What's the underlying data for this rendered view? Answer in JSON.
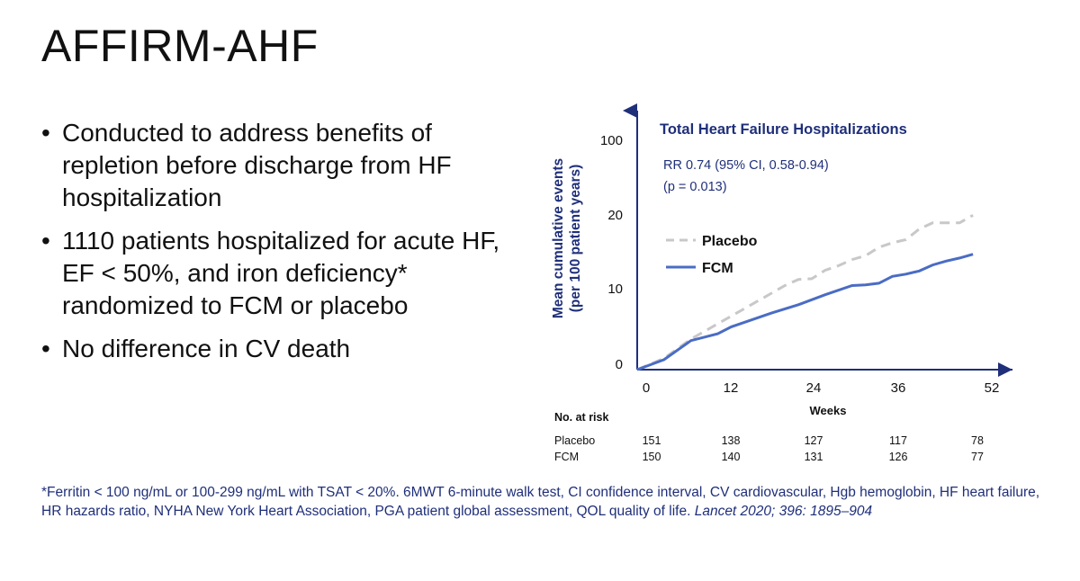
{
  "slide": {
    "title": "AFFIRM-AHF",
    "bullets": [
      "Conducted to address benefits of repletion before discharge from HF hospitalization",
      "1110 patients hospitalized for acute HF, EF < 50%, and  iron deficiency* randomized to FCM or placebo",
      "No difference in CV death"
    ],
    "footnote": "*Ferritin < 100 ng/mL or 100-299 ng/mL with TSAT < 20%. 6MWT 6-minute walk test, CI confidence interval, CV cardiovascular,  Hgb hemoglobin, HF heart failure, HR hazards ratio, NYHA New York Heart Association, PGA patient global assessment, QOL quality of life.",
    "citation": "Lancet 2020; 396: 1895–904"
  },
  "chart_data": {
    "type": "line",
    "title": "Total Heart Failure Hospitalizations",
    "annotations": [
      "RR 0.74 (95% CI, 0.58-0.94)",
      "(p = 0.013)"
    ],
    "xlabel": "Weeks",
    "ylabel": [
      "Mean cumulative events",
      "(per 100 patient years)"
    ],
    "xticks": [
      0,
      12,
      24,
      36,
      52
    ],
    "yticks": [
      "0",
      "10",
      "20",
      "100"
    ],
    "xlim": [
      0,
      52
    ],
    "y_axis_break": "between 20 and 100",
    "legend_position": "upper-left inside plot",
    "series": [
      {
        "name": "Placebo",
        "style": "dashed",
        "color": "#c8c8c8",
        "x": [
          0,
          4,
          8,
          12,
          16,
          20,
          22,
          24,
          26,
          28,
          30,
          32,
          34,
          36,
          38,
          40,
          42,
          44,
          46,
          48,
          50
        ],
        "y": [
          0,
          1.5,
          4.0,
          6.0,
          8.0,
          10.0,
          11.0,
          11.8,
          11.9,
          13.0,
          13.6,
          14.4,
          14.9,
          16.0,
          16.6,
          17.0,
          18.4,
          19.2,
          19.2,
          19.2,
          20.2
        ]
      },
      {
        "name": "FCM",
        "style": "solid",
        "color": "#4a6cc4",
        "x": [
          0,
          4,
          8,
          12,
          14,
          16,
          20,
          24,
          28,
          32,
          34,
          36,
          38,
          40,
          42,
          44,
          46,
          48,
          50
        ],
        "y": [
          0,
          1.3,
          3.8,
          4.7,
          5.6,
          6.2,
          7.4,
          8.5,
          9.8,
          11.0,
          11.1,
          11.3,
          12.2,
          12.5,
          12.9,
          13.7,
          14.2,
          14.6,
          15.1
        ]
      }
    ],
    "at_risk": {
      "header": "No. at risk",
      "rows": [
        {
          "label": "Placebo",
          "values": [
            "151",
            "138",
            "127",
            "117",
            "78"
          ]
        },
        {
          "label": "FCM",
          "values": [
            "150",
            "140",
            "131",
            "126",
            "77"
          ]
        }
      ]
    },
    "colors": {
      "axis": "#1f2f7a",
      "text_blue": "#1f2f7a"
    }
  }
}
